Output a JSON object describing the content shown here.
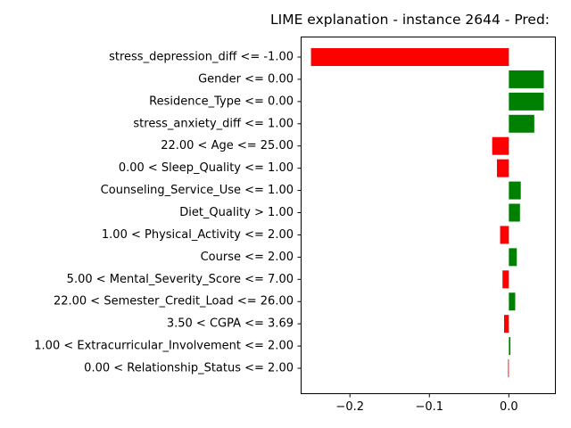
{
  "chart_data": {
    "type": "bar",
    "orientation": "horizontal",
    "title": "LIME explanation - instance 2644 - Pred:",
    "xlabel": "",
    "ylabel": "",
    "xlim": [
      -0.262,
      0.058
    ],
    "xticks": [
      {
        "value": -0.2,
        "label": "−0.2"
      },
      {
        "value": -0.1,
        "label": "−0.1"
      },
      {
        "value": 0.0,
        "label": "0.0"
      }
    ],
    "grid": false,
    "legend": "none",
    "colors": {
      "positive": "#008000",
      "negative": "#ff0000"
    },
    "categories": [
      "stress_depression_diff <= -1.00",
      "Gender <= 0.00",
      "Residence_Type <= 0.00",
      "stress_anxiety_diff <= 1.00",
      "22.00 < Age <= 25.00",
      "0.00 < Sleep_Quality <= 1.00",
      "Counseling_Service_Use <= 1.00",
      "Diet_Quality > 1.00",
      "1.00 < Physical_Activity <= 2.00",
      "Course <= 2.00",
      "5.00 < Mental_Severity_Score <= 7.00",
      "22.00 < Semester_Credit_Load <= 26.00",
      "3.50 < CGPA <= 3.69",
      "1.00 < Extracurricular_Involvement <= 2.00",
      "0.00 < Relationship_Status <= 2.00"
    ],
    "values": [
      -0.249,
      0.044,
      0.044,
      0.032,
      -0.021,
      -0.015,
      0.015,
      0.014,
      -0.011,
      0.01,
      -0.008,
      0.008,
      -0.006,
      0.002,
      -0.001
    ]
  }
}
